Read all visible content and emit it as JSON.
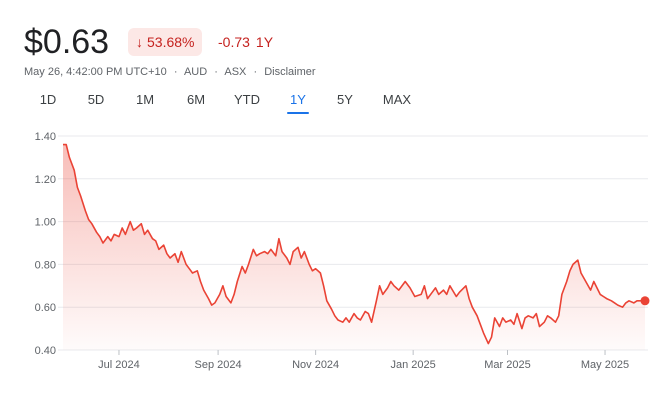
{
  "header": {
    "price": "$0.63",
    "percent_change": "53.68%",
    "change_arrow_icon": "arrow-down-icon",
    "abs_change": "-0.73",
    "period": "1Y"
  },
  "meta": {
    "datetime": "May 26, 4:42:00 PM UTC+10",
    "currency": "AUD",
    "exchange": "ASX",
    "disclaimer": "Disclaimer",
    "separator": "·"
  },
  "ranges": {
    "items": [
      "1D",
      "5D",
      "1M",
      "6M",
      "YTD",
      "1Y",
      "5Y",
      "MAX"
    ],
    "selected": "1Y"
  },
  "colors": {
    "negative": "#c5221f",
    "line": "#ea4335",
    "accent": "#1a73e8",
    "grid": "#e8eaed"
  },
  "chart_data": {
    "type": "area",
    "y_ticks": [
      "1.40",
      "1.20",
      "1.00",
      "0.80",
      "0.60",
      "0.40"
    ],
    "x_ticks": [
      "Jul 2024",
      "Sep 2024",
      "Nov 2024",
      "Jan 2025",
      "Mar 2025",
      "May 2025"
    ],
    "x_range": [
      "2024-05-27",
      "2025-05-26"
    ],
    "ylim": [
      0.4,
      1.4
    ],
    "grid": true,
    "series": [
      {
        "x": [
          "2024-05-27",
          "2024-05-29",
          "2024-05-31",
          "2024-06-03",
          "2024-06-05",
          "2024-06-07",
          "2024-06-10",
          "2024-06-12",
          "2024-06-14",
          "2024-06-17",
          "2024-06-19",
          "2024-06-21",
          "2024-06-24",
          "2024-06-26",
          "2024-06-28",
          "2024-07-01",
          "2024-07-03",
          "2024-07-05",
          "2024-07-08",
          "2024-07-10",
          "2024-07-12",
          "2024-07-15",
          "2024-07-17",
          "2024-07-19",
          "2024-07-22",
          "2024-07-24",
          "2024-07-26",
          "2024-07-29",
          "2024-07-31",
          "2024-08-02",
          "2024-08-05",
          "2024-08-07",
          "2024-08-09",
          "2024-08-12",
          "2024-08-14",
          "2024-08-16",
          "2024-08-19",
          "2024-08-21",
          "2024-08-23",
          "2024-08-26",
          "2024-08-28",
          "2024-08-30",
          "2024-09-02",
          "2024-09-04",
          "2024-09-06",
          "2024-09-09",
          "2024-09-11",
          "2024-09-13",
          "2024-09-16",
          "2024-09-18",
          "2024-09-20",
          "2024-09-23",
          "2024-09-25",
          "2024-09-27",
          "2024-09-30",
          "2024-10-02",
          "2024-10-04",
          "2024-10-07",
          "2024-10-09",
          "2024-10-11",
          "2024-10-14",
          "2024-10-16",
          "2024-10-18",
          "2024-10-21",
          "2024-10-23",
          "2024-10-25",
          "2024-10-28",
          "2024-10-30",
          "2024-11-01",
          "2024-11-04",
          "2024-11-06",
          "2024-11-08",
          "2024-11-11",
          "2024-11-13",
          "2024-11-15",
          "2024-11-18",
          "2024-11-20",
          "2024-11-22",
          "2024-11-25",
          "2024-11-27",
          "2024-11-29",
          "2024-12-02",
          "2024-12-04",
          "2024-12-06",
          "2024-12-09",
          "2024-12-11",
          "2024-12-13",
          "2024-12-16",
          "2024-12-18",
          "2024-12-20",
          "2024-12-23",
          "2024-12-27",
          "2024-12-30",
          "2025-01-02",
          "2025-01-06",
          "2025-01-08",
          "2025-01-10",
          "2025-01-13",
          "2025-01-15",
          "2025-01-17",
          "2025-01-20",
          "2025-01-22",
          "2025-01-24",
          "2025-01-28",
          "2025-01-30",
          "2025-02-03",
          "2025-02-05",
          "2025-02-07",
          "2025-02-10",
          "2025-02-12",
          "2025-02-14",
          "2025-02-17",
          "2025-02-19",
          "2025-02-21",
          "2025-02-24",
          "2025-02-26",
          "2025-02-28",
          "2025-03-03",
          "2025-03-05",
          "2025-03-07",
          "2025-03-10",
          "2025-03-12",
          "2025-03-14",
          "2025-03-17",
          "2025-03-19",
          "2025-03-21",
          "2025-03-24",
          "2025-03-26",
          "2025-03-28",
          "2025-03-31",
          "2025-04-02",
          "2025-04-04",
          "2025-04-07",
          "2025-04-09",
          "2025-04-11",
          "2025-04-14",
          "2025-04-16",
          "2025-04-22",
          "2025-04-24",
          "2025-04-28",
          "2025-04-30",
          "2025-05-02",
          "2025-05-05",
          "2025-05-07",
          "2025-05-09",
          "2025-05-12",
          "2025-05-14",
          "2025-05-16",
          "2025-05-19",
          "2025-05-21",
          "2025-05-23",
          "2025-05-26"
        ],
        "y": [
          1.36,
          1.36,
          1.3,
          1.24,
          1.16,
          1.12,
          1.05,
          1.01,
          0.99,
          0.95,
          0.93,
          0.9,
          0.93,
          0.91,
          0.94,
          0.93,
          0.97,
          0.94,
          1.0,
          0.96,
          0.97,
          0.99,
          0.94,
          0.96,
          0.92,
          0.91,
          0.87,
          0.89,
          0.85,
          0.83,
          0.85,
          0.81,
          0.86,
          0.8,
          0.78,
          0.76,
          0.77,
          0.72,
          0.68,
          0.64,
          0.61,
          0.62,
          0.66,
          0.7,
          0.65,
          0.62,
          0.66,
          0.72,
          0.79,
          0.76,
          0.8,
          0.87,
          0.84,
          0.85,
          0.86,
          0.85,
          0.87,
          0.84,
          0.92,
          0.86,
          0.83,
          0.8,
          0.86,
          0.88,
          0.83,
          0.86,
          0.8,
          0.77,
          0.78,
          0.76,
          0.7,
          0.63,
          0.59,
          0.56,
          0.54,
          0.53,
          0.55,
          0.53,
          0.57,
          0.55,
          0.54,
          0.58,
          0.57,
          0.53,
          0.63,
          0.7,
          0.66,
          0.69,
          0.72,
          0.7,
          0.68,
          0.72,
          0.69,
          0.65,
          0.66,
          0.7,
          0.64,
          0.67,
          0.69,
          0.66,
          0.68,
          0.66,
          0.7,
          0.65,
          0.67,
          0.7,
          0.64,
          0.6,
          0.56,
          0.52,
          0.48,
          0.43,
          0.46,
          0.55,
          0.51,
          0.55,
          0.53,
          0.54,
          0.52,
          0.57,
          0.5,
          0.55,
          0.56,
          0.55,
          0.57,
          0.51,
          0.53,
          0.56,
          0.55,
          0.53,
          0.56,
          0.66,
          0.72,
          0.77,
          0.8,
          0.82,
          0.76,
          0.68,
          0.72,
          0.66,
          0.65,
          0.64,
          0.63,
          0.62,
          0.61,
          0.6,
          0.62,
          0.63,
          0.62,
          0.63,
          0.63,
          0.63
        ]
      }
    ]
  }
}
